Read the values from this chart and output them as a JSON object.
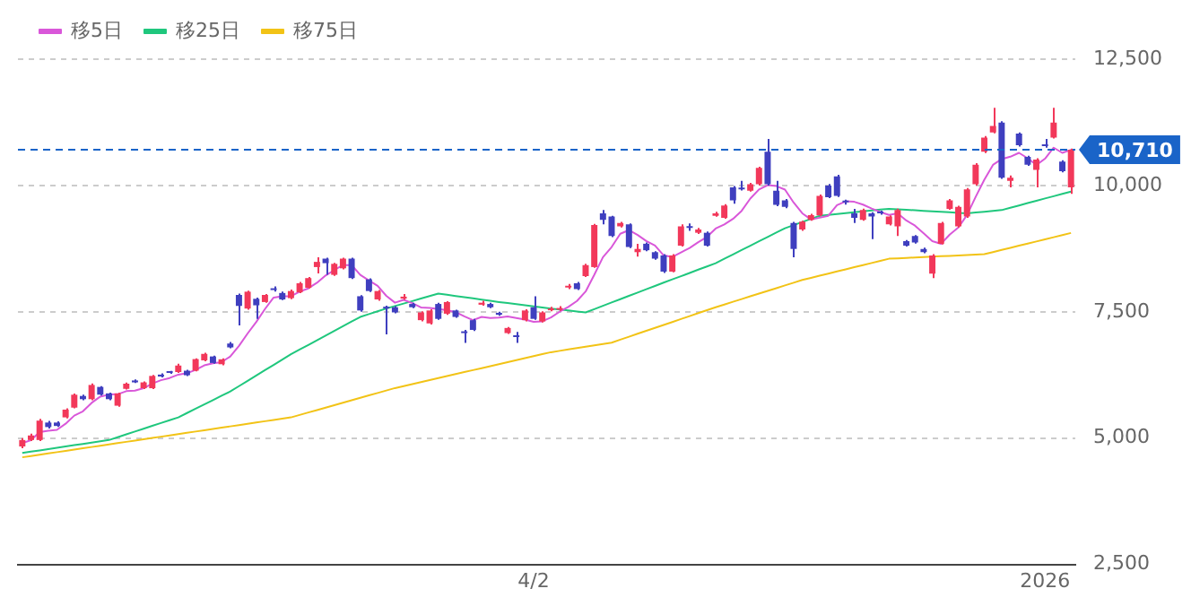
{
  "chart_data": {
    "type": "candlestick",
    "categories": [
      null,
      null,
      null,
      null,
      null,
      null,
      null,
      null,
      null,
      null,
      null,
      null,
      null,
      null,
      null,
      null,
      null,
      null,
      null,
      null,
      null,
      null,
      null,
      null,
      null,
      null,
      null,
      null,
      null,
      null,
      null,
      null,
      null,
      null,
      null,
      null,
      null,
      null,
      null,
      null,
      null,
      null,
      null,
      null,
      null,
      null,
      null,
      null,
      null,
      null,
      null,
      null,
      null,
      null,
      null,
      null,
      null,
      null,
      null,
      "4/2",
      null,
      null,
      null,
      null,
      null,
      null,
      null,
      null,
      null,
      null,
      null,
      null,
      null,
      null,
      null,
      null,
      null,
      null,
      null,
      null,
      null,
      null,
      null,
      null,
      null,
      null,
      null,
      null,
      null,
      null,
      null,
      null,
      null,
      null,
      null,
      null,
      null,
      null,
      null,
      null,
      null,
      null,
      null,
      null,
      null,
      null,
      null,
      null,
      null,
      null,
      null,
      null,
      null,
      null,
      null,
      null,
      null,
      null,
      "2026",
      null,
      null,
      null
    ],
    "ohlc": [
      [
        4834,
        5000,
        4800,
        4962
      ],
      [
        4962,
        5090,
        4940,
        5052
      ],
      [
        4962,
        5380,
        4940,
        5346
      ],
      [
        5308,
        5340,
        5190,
        5218
      ],
      [
        5308,
        5330,
        5220,
        5240
      ],
      [
        5410,
        5590,
        5390,
        5564
      ],
      [
        5603,
        5880,
        5590,
        5859
      ],
      [
        5834,
        5860,
        5750,
        5770
      ],
      [
        5770,
        6080,
        5750,
        6052
      ],
      [
        6013,
        6030,
        5840,
        5860
      ],
      [
        5885,
        5900,
        5750,
        5770
      ],
      [
        5641,
        5900,
        5620,
        5885
      ],
      [
        5975,
        6100,
        5960,
        6077
      ],
      [
        6141,
        6160,
        6090,
        6103
      ],
      [
        5987,
        6120,
        5970,
        6103
      ],
      [
        5987,
        6250,
        5970,
        6231
      ],
      [
        6257,
        6280,
        6200,
        6218
      ],
      [
        6310,
        6330,
        6270,
        6290
      ],
      [
        6308,
        6470,
        6290,
        6436
      ],
      [
        6334,
        6350,
        6230,
        6244
      ],
      [
        6334,
        6580,
        6320,
        6564
      ],
      [
        6539,
        6690,
        6520,
        6667
      ],
      [
        6616,
        6630,
        6470,
        6487
      ],
      [
        6462,
        6580,
        6440,
        6560
      ],
      [
        6872,
        6900,
        6780,
        6795
      ],
      [
        7834,
        7860,
        7231,
        7616
      ],
      [
        7564,
        7920,
        7540,
        7898
      ],
      [
        7757,
        7780,
        7359,
        7628
      ],
      [
        7693,
        7850,
        7680,
        7834
      ],
      [
        7960,
        8000,
        7900,
        7930
      ],
      [
        7872,
        7900,
        7730,
        7744
      ],
      [
        7770,
        7940,
        7750,
        7911
      ],
      [
        7885,
        8090,
        7870,
        8065
      ],
      [
        7975,
        8190,
        7960,
        8167
      ],
      [
        8385,
        8580,
        8260,
        8488
      ],
      [
        8552,
        8570,
        8231,
        8462
      ],
      [
        8231,
        8470,
        8210,
        8449
      ],
      [
        8360,
        8570,
        8340,
        8552
      ],
      [
        8552,
        8570,
        8150,
        8167
      ],
      [
        7808,
        7830,
        7500,
        7526
      ],
      [
        8142,
        8160,
        7890,
        7911
      ],
      [
        7744,
        7930,
        7720,
        7911
      ],
      [
        7600,
        7620,
        7052,
        7565
      ],
      [
        7590,
        7610,
        7470,
        7488
      ],
      [
        7760,
        7850,
        7740,
        7800
      ],
      [
        7655,
        7680,
        7570,
        7590
      ],
      [
        7334,
        7510,
        7310,
        7488
      ],
      [
        7270,
        7550,
        7250,
        7526
      ],
      [
        7655,
        7680,
        7340,
        7360
      ],
      [
        7462,
        7710,
        7440,
        7693
      ],
      [
        7526,
        7540,
        7380,
        7398
      ],
      [
        7100,
        7142,
        6885,
        7078
      ],
      [
        7334,
        7360,
        7120,
        7142
      ],
      [
        7640,
        7720,
        7620,
        7680
      ],
      [
        7655,
        7680,
        7570,
        7590
      ],
      [
        7480,
        7500,
        7420,
        7440
      ],
      [
        7078,
        7200,
        7060,
        7180
      ],
      [
        7030,
        7103,
        6885,
        7000
      ],
      [
        7334,
        7550,
        7310,
        7526
      ],
      [
        7590,
        7808,
        7340,
        7360
      ],
      [
        7308,
        7510,
        7290,
        7488
      ],
      [
        7530,
        7600,
        7510,
        7560
      ],
      [
        7540,
        7610,
        7520,
        7570
      ],
      [
        7980,
        8050,
        7950,
        8000
      ],
      [
        8065,
        8090,
        7930,
        7949
      ],
      [
        8206,
        8450,
        8190,
        8424
      ],
      [
        8385,
        9240,
        8370,
        9218
      ],
      [
        9449,
        9513,
        9231,
        9321
      ],
      [
        9385,
        9400,
        8980,
        9000
      ],
      [
        9193,
        9280,
        9170,
        9257
      ],
      [
        9231,
        9250,
        8760,
        8782
      ],
      [
        8680,
        8847,
        8590,
        8744
      ],
      [
        8847,
        8870,
        8700,
        8718
      ],
      [
        8680,
        8700,
        8530,
        8552
      ],
      [
        8616,
        8640,
        8270,
        8295
      ],
      [
        8295,
        8640,
        8280,
        8616
      ],
      [
        8808,
        9231,
        8790,
        9193
      ],
      [
        9180,
        9250,
        9100,
        9160
      ],
      [
        9064,
        9160,
        9040,
        9129
      ],
      [
        9064,
        9090,
        8790,
        8808
      ],
      [
        9400,
        9480,
        9380,
        9449
      ],
      [
        9359,
        9630,
        9340,
        9603
      ],
      [
        9962,
        9990,
        9641,
        9706
      ],
      [
        9940,
        10090,
        9900,
        9923
      ],
      [
        9898,
        10050,
        9880,
        10026
      ],
      [
        10026,
        10370,
        10000,
        10347
      ],
      [
        10667,
        10923,
        10000,
        10026
      ],
      [
        9898,
        10090,
        9590,
        9616
      ],
      [
        9706,
        9730,
        9550,
        9577
      ],
      [
        9257,
        9280,
        8577,
        8744
      ],
      [
        9129,
        9300,
        9100,
        9282
      ],
      [
        9321,
        9440,
        9300,
        9411
      ],
      [
        9410,
        9820,
        9390,
        9795
      ],
      [
        10000,
        10030,
        9750,
        9769
      ],
      [
        10180,
        10210,
        9770,
        9795
      ],
      [
        9680,
        9720,
        9620,
        9667
      ],
      [
        9449,
        9539,
        9257,
        9359
      ],
      [
        9321,
        9540,
        9300,
        9513
      ],
      [
        9449,
        9470,
        8936,
        9385
      ],
      [
        9460,
        9500,
        9420,
        9449
      ],
      [
        9231,
        9410,
        9210,
        9385
      ],
      [
        9192,
        9540,
        9000,
        9513
      ],
      [
        8898,
        8920,
        8790,
        8808
      ],
      [
        9000,
        9020,
        8850,
        8872
      ],
      [
        8744,
        8770,
        8660,
        8680
      ],
      [
        8257,
        8640,
        8167,
        8615
      ],
      [
        8846,
        9280,
        8830,
        9257
      ],
      [
        9539,
        9730,
        9520,
        9705
      ],
      [
        9192,
        9600,
        9170,
        9577
      ],
      [
        9385,
        9950,
        9360,
        9923
      ],
      [
        10026,
        10440,
        10000,
        10410
      ],
      [
        10667,
        10980,
        10640,
        10949
      ],
      [
        11051,
        11539,
        11030,
        11180
      ],
      [
        11244,
        11270,
        10130,
        10154
      ],
      [
        10090,
        10200,
        9962,
        10154
      ],
      [
        11026,
        11050,
        10770,
        10795
      ],
      [
        10564,
        10590,
        10390,
        10410
      ],
      [
        10308,
        10540,
        9962,
        10513
      ],
      [
        10800,
        10923,
        10750,
        10780
      ],
      [
        10949,
        11539,
        10930,
        11244
      ],
      [
        10474,
        10500,
        10260,
        10282
      ],
      [
        9962,
        10730,
        9833,
        10710
      ]
    ],
    "colors": [
      "#f2385a",
      "#f2385a",
      "#f2385a",
      "#3f3fbf",
      "#3f3fbf",
      "#f2385a",
      "#f2385a",
      "#3f3fbf",
      "#f2385a",
      "#3f3fbf",
      "#3f3fbf",
      "#f2385a",
      "#f2385a",
      "#3f3fbf",
      "#f2385a",
      "#f2385a",
      "#3f3fbf",
      "#3f3fbf",
      "#f2385a",
      "#3f3fbf",
      "#f2385a",
      "#f2385a",
      "#3f3fbf",
      "#f2385a",
      "#3f3fbf",
      "#3f3fbf",
      "#f2385a",
      "#3f3fbf",
      "#f2385a",
      "#3f3fbf",
      "#3f3fbf",
      "#f2385a",
      "#f2385a",
      "#f2385a",
      "#f2385a",
      "#3f3fbf",
      "#f2385a",
      "#f2385a",
      "#3f3fbf",
      "#3f3fbf",
      "#3f3fbf",
      "#f2385a",
      "#3f3fbf",
      "#3f3fbf",
      "#f2385a",
      "#3f3fbf",
      "#f2385a",
      "#f2385a",
      "#3f3fbf",
      "#f2385a",
      "#3f3fbf",
      "#3f3fbf",
      "#3f3fbf",
      "#f2385a",
      "#3f3fbf",
      "#3f3fbf",
      "#f2385a",
      "#3f3fbf",
      "#f2385a",
      "#3f3fbf",
      "#f2385a",
      "#f2385a",
      "#f2385a",
      "#f2385a",
      "#3f3fbf",
      "#f2385a",
      "#f2385a",
      "#3f3fbf",
      "#3f3fbf",
      "#f2385a",
      "#3f3fbf",
      "#f2385a",
      "#3f3fbf",
      "#3f3fbf",
      "#3f3fbf",
      "#f2385a",
      "#f2385a",
      "#3f3fbf",
      "#f2385a",
      "#3f3fbf",
      "#f2385a",
      "#f2385a",
      "#3f3fbf",
      "#3f3fbf",
      "#f2385a",
      "#f2385a",
      "#3f3fbf",
      "#3f3fbf",
      "#3f3fbf",
      "#3f3fbf",
      "#f2385a",
      "#f2385a",
      "#f2385a",
      "#3f3fbf",
      "#3f3fbf",
      "#3f3fbf",
      "#3f3fbf",
      "#f2385a",
      "#3f3fbf",
      "#3f3fbf",
      "#f2385a",
      "#f2385a",
      "#3f3fbf",
      "#3f3fbf",
      "#3f3fbf",
      "#f2385a",
      "#f2385a",
      "#f2385a",
      "#f2385a",
      "#f2385a",
      "#f2385a",
      "#f2385a",
      "#f2385a",
      "#3f3fbf",
      "#f2385a",
      "#3f3fbf",
      "#3f3fbf",
      "#f2385a",
      "#3f3fbf",
      "#f2385a",
      "#3f3fbf",
      "#f2385a"
    ],
    "series": [
      {
        "name": "移5日",
        "type": "line",
        "color": "#d957d9",
        "values": [
          4900,
          4960,
          5120,
          5145,
          5164,
          5284,
          5445,
          5530,
          5697,
          5821,
          5862,
          5867,
          5929,
          5939,
          5988,
          6080,
          6146,
          6189,
          6256,
          6284,
          6350,
          6440,
          6480,
          6504,
          6615,
          6825,
          7071,
          7299,
          7554,
          7781,
          7807,
          7809,
          7897,
          7963,
          8075,
          8219,
          8326,
          8424,
          8424,
          8231,
          8121,
          8013,
          7816,
          7680,
          7735,
          7671,
          7586,
          7578,
          7553,
          7531,
          7493,
          7411,
          7334,
          7398,
          7378,
          7386,
          7406,
          7378,
          7347,
          7301,
          7311,
          7387,
          7501,
          7596,
          7713,
          7901,
          8232,
          8582,
          8782,
          9044,
          9116,
          9021,
          8900,
          8811,
          8618,
          8585,
          8675,
          8763,
          8879,
          8981,
          9148,
          9230,
          9339,
          9498,
          9741,
          9921,
          10006,
          9988,
          9918,
          9662,
          9449,
          9326,
          9362,
          9400,
          9610,
          9687,
          9677,
          9621,
          9544,
          9475,
          9418,
          9449,
          9308,
          9205,
          9052,
          8898,
          8846,
          9026,
          9167,
          9415,
          9774,
          10113,
          10408,
          10523,
          10569,
          10646,
          10539,
          10405,
          10530,
          10748,
          10646,
          10706
        ]
      },
      {
        "name": "移25日",
        "type": "line",
        "color": "#1fc77d",
        "values": [
          4706,
          4732,
          4757,
          4783,
          4808,
          4834,
          4860,
          4885,
          4911,
          4936,
          4962,
          5018,
          5074,
          5130,
          5186,
          5242,
          5298,
          5354,
          5410,
          5496,
          5581,
          5667,
          5752,
          5838,
          5923,
          6028,
          6133,
          6239,
          6344,
          6449,
          6555,
          6660,
          6752,
          6844,
          6937,
          7029,
          7121,
          7214,
          7306,
          7398,
          7454,
          7509,
          7565,
          7614,
          7663,
          7712,
          7762,
          7811,
          7860,
          7836,
          7812,
          7788,
          7765,
          7741,
          7717,
          7693,
          7672,
          7651,
          7629,
          7608,
          7587,
          7565,
          7546,
          7527,
          7507,
          7488,
          7553,
          7619,
          7684,
          7750,
          7815,
          7881,
          7946,
          8012,
          8077,
          8141,
          8205,
          8269,
          8334,
          8398,
          8462,
          8549,
          8635,
          8722,
          8808,
          8895,
          8981,
          9068,
          9154,
          9216,
          9277,
          9339,
          9400,
          9417,
          9435,
          9452,
          9469,
          9487,
          9504,
          9522,
          9539,
          9529,
          9519,
          9509,
          9499,
          9489,
          9479,
          9469,
          9459,
          9449,
          9465,
          9481,
          9497,
          9513,
          9559,
          9605,
          9651,
          9697,
          9743,
          9788,
          9834,
          9880
        ]
      },
      {
        "name": "移75日",
        "type": "line",
        "color": "#f2c316",
        "values": [
          4620,
          4645,
          4670,
          4696,
          4722,
          4747,
          4773,
          4798,
          4824,
          4849,
          4875,
          4900,
          4926,
          4951,
          4977,
          5002,
          5028,
          5053,
          5079,
          5104,
          5130,
          5155,
          5181,
          5206,
          5232,
          5257,
          5283,
          5308,
          5334,
          5359,
          5385,
          5410,
          5458,
          5507,
          5555,
          5603,
          5652,
          5700,
          5748,
          5797,
          5845,
          5893,
          5942,
          5990,
          6029,
          6069,
          6108,
          6148,
          6187,
          6227,
          6266,
          6306,
          6345,
          6384,
          6424,
          6463,
          6503,
          6542,
          6582,
          6621,
          6661,
          6700,
          6727,
          6754,
          6781,
          6809,
          6836,
          6863,
          6890,
          6948,
          7007,
          7065,
          7123,
          7182,
          7240,
          7298,
          7357,
          7415,
          7473,
          7532,
          7590,
          7644,
          7698,
          7752,
          7806,
          7860,
          7914,
          7968,
          8022,
          8076,
          8130,
          8172,
          8214,
          8256,
          8298,
          8340,
          8382,
          8424,
          8466,
          8508,
          8550,
          8558,
          8566,
          8575,
          8583,
          8591,
          8599,
          8607,
          8615,
          8624,
          8632,
          8640,
          8682,
          8724,
          8766,
          8808,
          8850,
          8892,
          8934,
          8976,
          9018,
          9060
        ]
      }
    ],
    "ylim": [
      2500,
      12500
    ],
    "yticks": [
      {
        "value": 2500,
        "label": "2,500"
      },
      {
        "value": 5000,
        "label": "5,000"
      },
      {
        "value": 7500,
        "label": "7,500"
      },
      {
        "value": 10000,
        "label": "10,000"
      },
      {
        "value": 12500,
        "label": "12,500"
      }
    ],
    "ref_lines": [
      {
        "axis": "y",
        "value": 10710,
        "label": "10,710",
        "color": "#1a64c8",
        "line_style": "dashed"
      }
    ],
    "grid": "y",
    "legend": "top left"
  }
}
